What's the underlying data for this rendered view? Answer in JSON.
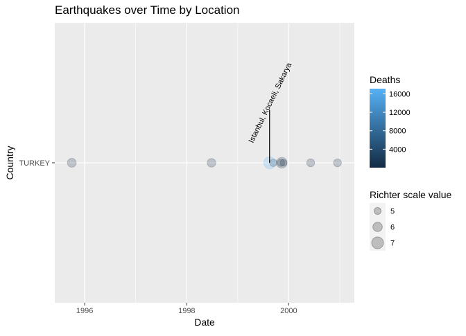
{
  "chart_data": {
    "type": "scatter",
    "title": "Earthquakes over Time by Location",
    "xlabel": "Date",
    "ylabel": "Country",
    "x_type": "date",
    "xlim": [
      "1995-06-01",
      "2001-04-15"
    ],
    "x_ticks": [
      {
        "value": "1996-01-01",
        "label": "1996"
      },
      {
        "value": "1998-01-01",
        "label": "1998"
      },
      {
        "value": "2000-01-01",
        "label": "2000"
      }
    ],
    "categories": [
      "TURKEY"
    ],
    "points": [
      {
        "date": "1995-10-01",
        "country": "TURKEY",
        "magnitude": 6.4,
        "deaths": 94
      },
      {
        "date": "1998-06-27",
        "country": "TURKEY",
        "magnitude": 6.3,
        "deaths": 145
      },
      {
        "date": "1999-08-17",
        "country": "TURKEY",
        "magnitude": 7.6,
        "deaths": 17118
      },
      {
        "date": "1999-09-13",
        "country": "TURKEY",
        "magnitude": 5.8,
        "deaths": 7
      },
      {
        "date": "1999-11-07",
        "country": "TURKEY",
        "magnitude": 5.7,
        "deaths": 0
      },
      {
        "date": "1999-11-12",
        "country": "TURKEY",
        "magnitude": 7.2,
        "deaths": 845
      },
      {
        "date": "1999-11-25",
        "country": "TURKEY",
        "magnitude": 5.5,
        "deaths": 0
      },
      {
        "date": "2000-06-06",
        "country": "TURKEY",
        "magnitude": 6.0,
        "deaths": 2
      },
      {
        "date": "2000-12-15",
        "country": "TURKEY",
        "magnitude": 6.0,
        "deaths": 6
      }
    ],
    "annotation": {
      "date": "1999-08-17",
      "country": "TURKEY",
      "text": "Istanbul, Kocaeli, Sakarya"
    },
    "legend_color": {
      "title": "Deaths",
      "ticks": [
        4000,
        8000,
        12000,
        16000
      ],
      "domain": [
        0,
        17118
      ],
      "low_color": "#132B43",
      "high_color": "#56B1F7"
    },
    "legend_size": {
      "title": "Richter scale value",
      "values": [
        5,
        6,
        7
      ]
    },
    "legend_position": "right",
    "grid": true
  }
}
